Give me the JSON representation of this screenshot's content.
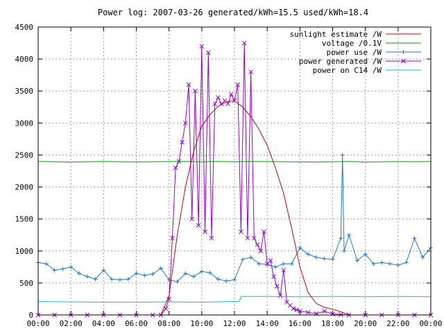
{
  "chart_data": {
    "type": "line",
    "title": "Power log: 2007-03-26 generated/kWh=15.5 used/kWh=18.4",
    "xlabel": "",
    "ylabel": "",
    "xlim": [
      0,
      24
    ],
    "ylim": [
      0,
      4500
    ],
    "x_ticks": [
      "00:00",
      "02:00",
      "04:00",
      "06:00",
      "08:00",
      "10:00",
      "12:00",
      "14:00",
      "16:00",
      "18:00",
      "20:00",
      "22:00",
      "00:00"
    ],
    "y_ticks": [
      "0",
      "500",
      "1000",
      "1500",
      "2000",
      "2500",
      "3000",
      "3500",
      "4000",
      "4500"
    ],
    "grid": true,
    "legend_position": "top-right",
    "series": [
      {
        "name": "sunlight estimate /W",
        "color": "#cc0000",
        "marker": "none",
        "x": [
          0,
          7.5,
          8,
          8.5,
          9,
          9.5,
          10,
          10.5,
          11,
          11.5,
          12,
          12.5,
          13,
          13.5,
          14,
          14.5,
          15,
          15.5,
          16,
          16.5,
          17,
          17.5,
          18,
          18.5,
          19,
          24
        ],
        "y": [
          0,
          0,
          300,
          1250,
          2000,
          2550,
          2950,
          3130,
          3260,
          3330,
          3350,
          3250,
          3100,
          2900,
          2650,
          2300,
          1900,
          1350,
          750,
          350,
          180,
          120,
          90,
          50,
          0,
          0
        ]
      },
      {
        "name": "voltage /0.1V",
        "color": "#00a000",
        "marker": "none",
        "x": [
          0,
          1,
          2,
          3,
          4,
          5,
          6,
          7,
          8,
          9,
          10,
          11,
          12,
          13,
          14,
          15,
          16,
          17,
          18,
          19,
          20,
          21,
          22,
          23,
          24
        ],
        "y": [
          2400,
          2395,
          2390,
          2395,
          2400,
          2395,
          2392,
          2395,
          2398,
          2400,
          2395,
          2400,
          2395,
          2400,
          2398,
          2395,
          2392,
          2390,
          2395,
          2400,
          2390,
          2395,
          2398,
          2395,
          2400
        ]
      },
      {
        "name": "power use /W",
        "color": "#1f77d0",
        "marker": "plus",
        "x": [
          0,
          0.5,
          1,
          1.5,
          2,
          2.5,
          3,
          3.5,
          4,
          4.5,
          5,
          5.5,
          6,
          6.5,
          7,
          7.5,
          8,
          8.5,
          9,
          9.5,
          10,
          10.5,
          11,
          11.5,
          12,
          12.5,
          13,
          13.5,
          14,
          14.5,
          15,
          15.5,
          16,
          16.5,
          17,
          17.5,
          18,
          18.5,
          18.6,
          18.7,
          19,
          19.5,
          20,
          20.5,
          21,
          21.5,
          22,
          22.5,
          23,
          23.5,
          24
        ],
        "y": [
          820,
          800,
          700,
          720,
          750,
          650,
          600,
          560,
          700,
          560,
          550,
          560,
          650,
          620,
          640,
          730,
          550,
          520,
          650,
          600,
          680,
          660,
          560,
          530,
          550,
          870,
          900,
          800,
          790,
          750,
          800,
          800,
          1050,
          950,
          900,
          880,
          870,
          1200,
          2500,
          1000,
          1250,
          850,
          950,
          800,
          820,
          800,
          780,
          820,
          1200,
          900,
          1050
        ]
      },
      {
        "name": "power generated /W",
        "color": "#9400d3",
        "marker": "x",
        "x": [
          0,
          1,
          2,
          3,
          4,
          5,
          6,
          7,
          7.5,
          7.8,
          8,
          8.2,
          8.4,
          8.6,
          8.8,
          9,
          9.2,
          9.4,
          9.6,
          9.8,
          10,
          10.2,
          10.4,
          10.6,
          10.8,
          11,
          11.2,
          11.4,
          11.6,
          11.8,
          12,
          12.2,
          12.4,
          12.6,
          12.8,
          13,
          13.2,
          13.4,
          13.6,
          13.8,
          14,
          14.2,
          14.4,
          14.6,
          14.8,
          15,
          15.2,
          15.4,
          15.6,
          15.8,
          16,
          16.5,
          17,
          17.5,
          18,
          18.5,
          19,
          20,
          21,
          22,
          23,
          24
        ],
        "y": [
          0,
          0,
          0,
          0,
          0,
          0,
          0,
          0,
          0,
          100,
          250,
          1200,
          2300,
          2400,
          2700,
          3000,
          3600,
          1500,
          3500,
          1400,
          4200,
          1300,
          4100,
          1200,
          3300,
          3400,
          3300,
          3350,
          3300,
          3450,
          3350,
          3600,
          1300,
          4250,
          1200,
          3800,
          1200,
          1100,
          1000,
          1300,
          800,
          850,
          600,
          450,
          300,
          700,
          200,
          150,
          100,
          80,
          60,
          40,
          20,
          60,
          15,
          5,
          0,
          0,
          0,
          0,
          0,
          0
        ]
      },
      {
        "name": "power on C14 /W",
        "color": "#00c8c8",
        "marker": "none",
        "x": [
          0,
          2,
          4,
          6,
          8,
          10,
          11.9,
          12,
          12.3,
          12.4,
          14,
          16,
          18,
          20,
          22,
          24
        ],
        "y": [
          210,
          205,
          200,
          200,
          205,
          200,
          210,
          210,
          215,
          290,
          290,
          285,
          290,
          285,
          290,
          285
        ]
      }
    ]
  }
}
